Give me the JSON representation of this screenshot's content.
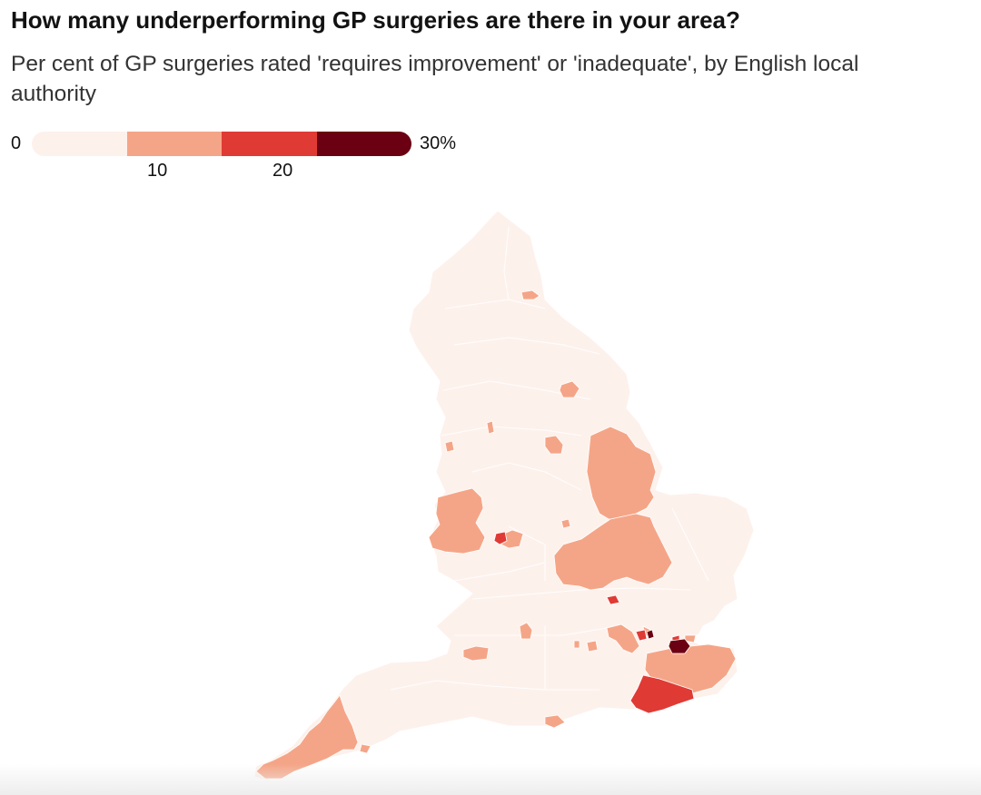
{
  "title": "How many underperforming GP surgeries are there in your area?",
  "subtitle": "Per cent of GP surgeries rated 'requires improvement' or 'inadequate', by English local authority",
  "legend": {
    "min_label": "0",
    "max_label": "30%",
    "tick_10": "10",
    "tick_20": "20",
    "bins": [
      {
        "from": 0,
        "to": 7.5,
        "color": "#fdf1ec"
      },
      {
        "from": 7.5,
        "to": 15,
        "color": "#f5a587"
      },
      {
        "from": 15,
        "to": 22.5,
        "color": "#e03a35"
      },
      {
        "from": 22.5,
        "to": 30,
        "color": "#6a0011"
      }
    ]
  },
  "colors": {
    "base": "#fdf1ec",
    "low": "#f5a587",
    "mid": "#e03a35",
    "high": "#6a0011",
    "border": "#ffffff"
  }
}
